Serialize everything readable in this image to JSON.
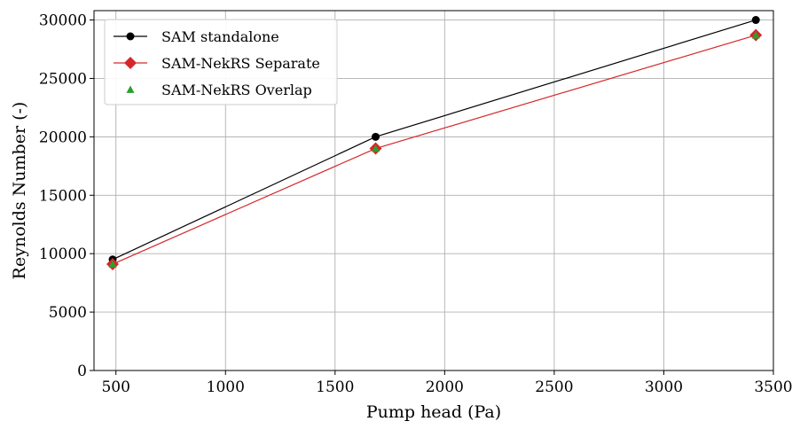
{
  "chart_data": {
    "type": "line",
    "xlabel": "Pump head (Pa)",
    "ylabel": "Reynolds Number (-)",
    "xlim": [
      400,
      3500
    ],
    "ylim": [
      0,
      30800
    ],
    "xticks": [
      500,
      1000,
      1500,
      2000,
      2500,
      3000,
      3500
    ],
    "yticks": [
      0,
      5000,
      10000,
      15000,
      20000,
      25000,
      30000
    ],
    "grid": true,
    "legend_position": "top-left",
    "series": [
      {
        "name": "SAM standalone",
        "x": [
          485,
          1685,
          3420
        ],
        "values": [
          9500,
          20000,
          30000
        ],
        "color": "#000000",
        "marker": "circle",
        "line": true
      },
      {
        "name": "SAM-NekRS Separate",
        "x": [
          485,
          1685,
          3420
        ],
        "values": [
          9100,
          19000,
          28700
        ],
        "color": "#d62728",
        "marker": "diamond",
        "line": true
      },
      {
        "name": "SAM-NekRS Overlap",
        "x": [
          485,
          1685,
          3420
        ],
        "values": [
          9100,
          19000,
          28700
        ],
        "color": "#2ca02c",
        "marker": "triangle",
        "line": false
      }
    ]
  }
}
